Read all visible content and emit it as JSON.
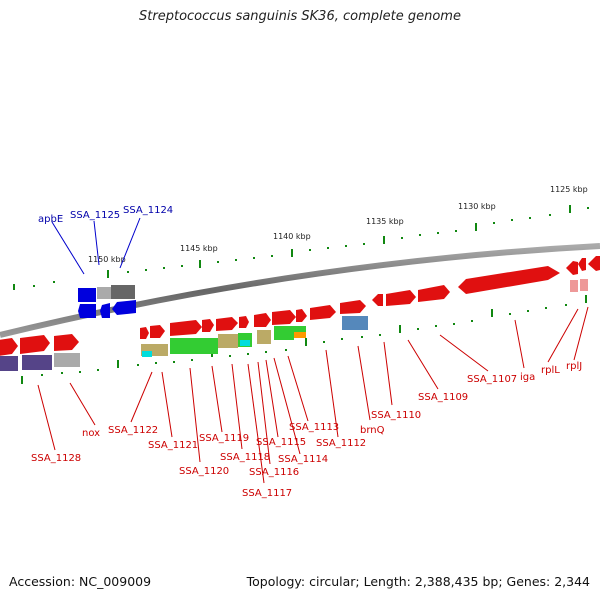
{
  "title": "Streptococcus sanguinis SK36, complete genome",
  "footer": {
    "accession": "Accession: NC_009009",
    "topology": "Topology: circular; Length: 2,388,435 bp; Genes: 2,344"
  },
  "kbp_labels": [
    "1125 kbp",
    "1130 kbp",
    "1135 kbp",
    "1140 kbp",
    "1145 kbp",
    "1150 kbp"
  ],
  "gene_labels_blue": [
    "apbE",
    "SSA_1125",
    "SSA_1124"
  ],
  "gene_labels_red": [
    "SSA_1128",
    "nox",
    "SSA_1122",
    "SSA_1121",
    "SSA_1120",
    "SSA_1119",
    "SSA_1118",
    "SSA_1117",
    "SSA_1116",
    "SSA_1115",
    "SSA_1114",
    "SSA_1113",
    "SSA_1112",
    "brnQ",
    "SSA_1110",
    "SSA_1109",
    "SSA_1107",
    "iga",
    "rplL",
    "rplJ"
  ],
  "colors": {
    "forward": "#e00000",
    "reverse_blue": "#0000dd",
    "backbone": "#777777",
    "tick": "#118811",
    "label_red": "#cc0000",
    "label_blue": "#0000aa"
  }
}
